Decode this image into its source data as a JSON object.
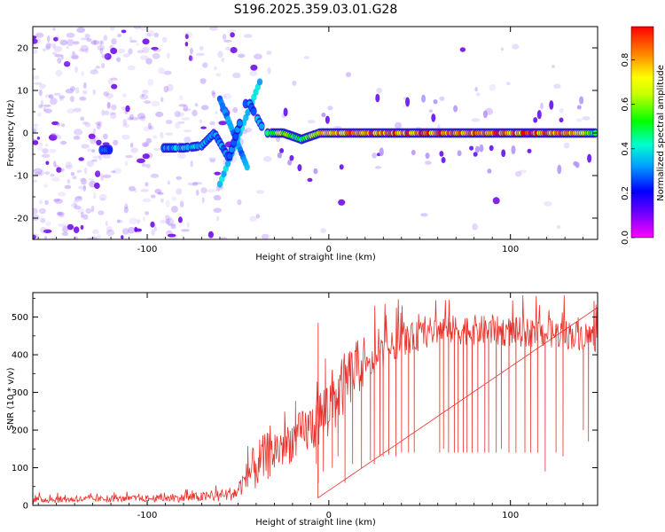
{
  "chart_data": [
    {
      "type": "heatmap",
      "title": "S196.2025.359.03.01.G28",
      "xlabel": "Height of straight line (km)",
      "ylabel": "Frequency (Hz)",
      "xlim": [
        -163,
        148
      ],
      "ylim": [
        -25,
        25
      ],
      "xticks": [
        -100,
        0,
        100
      ],
      "yticks": [
        -20,
        -10,
        0,
        10,
        20
      ],
      "colorbar": {
        "label": "Normalized spectral amplitude",
        "range": [
          0,
          0.95
        ],
        "ticks": [
          0.0,
          0.2,
          0.4,
          0.6,
          0.8
        ]
      },
      "ridge": [
        {
          "x": -125,
          "y": -4,
          "amp": 0.3
        },
        {
          "x": -90,
          "y": -3.5,
          "amp": 0.35
        },
        {
          "x": -80,
          "y": -3.5,
          "amp": 0.4
        },
        {
          "x": -70,
          "y": -3,
          "amp": 0.4
        },
        {
          "x": -63,
          "y": 0,
          "amp": 0.35
        },
        {
          "x": -55,
          "y": -6,
          "amp": 0.35
        },
        {
          "x": -45,
          "y": 8,
          "amp": 0.3
        },
        {
          "x": -35,
          "y": 0,
          "amp": 0.45
        },
        {
          "x": -25,
          "y": 0,
          "amp": 0.7
        },
        {
          "x": -15,
          "y": -1.5,
          "amp": 0.5
        },
        {
          "x": -5,
          "y": 0,
          "amp": 0.75
        },
        {
          "x": 10,
          "y": 0,
          "amp": 0.9
        },
        {
          "x": 40,
          "y": 0,
          "amp": 0.92
        },
        {
          "x": 75,
          "y": 0,
          "amp": 0.95
        },
        {
          "x": 110,
          "y": 0,
          "amp": 0.93
        },
        {
          "x": 130,
          "y": 0,
          "amp": 0.9
        },
        {
          "x": 147,
          "y": 0,
          "amp": 0.6
        }
      ]
    },
    {
      "type": "line",
      "xlabel": "Height of straight line (km)",
      "ylabel": "SNR (10 * v/v)",
      "xlim": [
        -163,
        148
      ],
      "ylim": [
        0,
        565
      ],
      "xticks": [
        -100,
        0,
        100
      ],
      "yticks": [
        0,
        100,
        200,
        300,
        400,
        500
      ],
      "series": [
        {
          "name": "SNR",
          "color": "#e8312b",
          "x": [
            -163,
            -140,
            -120,
            -100,
            -80,
            -60,
            -50,
            -40,
            -30,
            -20,
            -10,
            0,
            10,
            20,
            30,
            40,
            60,
            80,
            100,
            120,
            140,
            148
          ],
          "base": [
            15,
            16,
            17,
            18,
            20,
            25,
            35,
            80,
            120,
            150,
            180,
            220,
            300,
            360,
            410,
            440,
            470,
            470,
            465,
            462,
            455,
            450
          ],
          "max": [
            35,
            35,
            35,
            38,
            45,
            60,
            80,
            230,
            260,
            280,
            330,
            430,
            480,
            520,
            540,
            560,
            560,
            560,
            560,
            560,
            560,
            550
          ]
        }
      ],
      "dropouts": {
        "x": [
          -7,
          -3,
          2,
          5,
          9,
          13,
          18,
          23,
          25,
          28,
          30,
          33,
          37,
          40,
          44,
          47,
          61,
          63,
          66,
          69,
          71,
          74,
          76,
          79,
          82,
          86,
          88,
          92,
          95,
          99,
          103,
          108,
          111,
          115,
          119,
          125,
          129,
          140,
          143
        ],
        "min": [
          110,
          90,
          100,
          130,
          60,
          110,
          100,
          120,
          110,
          130,
          130,
          135,
          130,
          140,
          140,
          140,
          140,
          150,
          140,
          140,
          140,
          140,
          140,
          140,
          140,
          140,
          140,
          140,
          150,
          140,
          140,
          140,
          140,
          140,
          90,
          140,
          130,
          200,
          170
        ]
      }
    }
  ]
}
